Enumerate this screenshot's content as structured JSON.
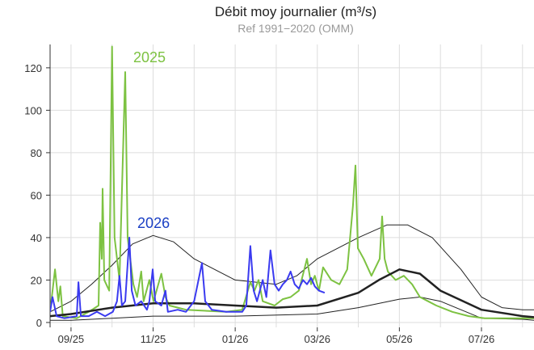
{
  "chart_data": {
    "type": "line",
    "title": "Débit moy journalier (m³/s)",
    "subtitle": "Ref 1991−2020 (OMM)",
    "xlim": [
      -0.51,
      11.28
    ],
    "xticks": [
      {
        "value": 0,
        "label": "09/25"
      },
      {
        "value": 2,
        "label": "11/25"
      },
      {
        "value": 4,
        "label": "01/26"
      },
      {
        "value": 6,
        "label": "03/26"
      },
      {
        "value": 8,
        "label": "05/26"
      },
      {
        "value": 10,
        "label": "07/26"
      }
    ],
    "xminor": [
      1,
      3,
      5,
      7,
      9,
      11
    ],
    "ylim": [
      -2.3,
      131
    ],
    "yticks": [
      0,
      20,
      40,
      60,
      80,
      100,
      120
    ],
    "grid": true,
    "series": [
      {
        "color": "#222222",
        "width": 1,
        "x": [
          -0.51,
          0,
          0.5,
          1,
          1.5,
          2,
          2.5,
          3,
          4,
          5,
          5.5,
          6,
          7,
          7.7,
          8.2,
          8.8,
          9.5,
          10,
          10.5,
          11,
          11.28
        ],
        "values": [
          5,
          10,
          18,
          27,
          37,
          41,
          38,
          30,
          20,
          18,
          22,
          30,
          40,
          46,
          46,
          40,
          25,
          12,
          7,
          6,
          6
        ]
      },
      {
        "color": "#222222",
        "width": 1,
        "x": [
          -0.51,
          0,
          1,
          2,
          4,
          6,
          7,
          8,
          8.5,
          9,
          9.5,
          10,
          11,
          11.28
        ],
        "values": [
          1,
          1,
          2,
          3,
          3,
          4,
          7,
          11,
          12,
          10,
          6,
          2,
          1.5,
          1
        ]
      },
      {
        "name": "2025",
        "color": "#7dc242",
        "width": 2,
        "x": [
          -0.51,
          -0.39,
          -0.31,
          -0.26,
          -0.2,
          0.14,
          0.33,
          0.43,
          0.67,
          0.71,
          0.75,
          0.77,
          0.81,
          0.93,
          1.0,
          1.06,
          1.18,
          1.32,
          1.38,
          1.52,
          1.61,
          1.71,
          1.77,
          1.91,
          2.01,
          2.2,
          2.3,
          2.4,
          2.8,
          3.78,
          4.17,
          4.37,
          4.47,
          4.57,
          4.67,
          4.96,
          5.16,
          5.35,
          5.55,
          5.75,
          5.85,
          5.94,
          6.04,
          6.14,
          6.34,
          6.54,
          6.73,
          6.87,
          6.93,
          6.99,
          7.13,
          7.32,
          7.52,
          7.58,
          7.64,
          7.72,
          7.91,
          8.11,
          8.31,
          8.5,
          8.7,
          8.9,
          9.29,
          9.69,
          10.08,
          10.67,
          11.28
        ],
        "values": [
          5,
          25,
          10,
          17,
          3,
          2,
          4,
          5,
          8,
          47,
          30,
          63,
          20,
          15,
          130,
          40,
          20,
          118,
          40,
          18,
          12,
          24,
          10,
          20,
          10,
          23,
          12,
          8,
          6,
          5,
          6,
          19,
          15,
          20,
          10,
          8,
          11,
          12,
          15,
          30,
          18,
          22,
          15,
          26,
          20,
          18,
          25,
          55,
          74,
          35,
          30,
          22,
          30,
          50,
          30,
          24,
          20,
          22,
          18,
          12,
          10,
          8,
          5,
          3,
          2,
          2,
          2
        ]
      },
      {
        "color": "#222222",
        "width": 2.5,
        "x": [
          -0.51,
          0,
          1,
          2,
          3,
          4,
          5,
          6,
          7,
          7.5,
          8,
          8.5,
          9,
          10,
          11,
          11.28
        ],
        "values": [
          3,
          4,
          7,
          9,
          9,
          8,
          7,
          8,
          14,
          20,
          25,
          23,
          15,
          6,
          3,
          2.5
        ]
      },
      {
        "name": "2026",
        "color": "#3a3af0",
        "label_color": "#1a3fc4",
        "width": 2,
        "x": [
          -0.51,
          -0.45,
          -0.35,
          -0.16,
          0.14,
          0.18,
          0.24,
          0.43,
          0.63,
          0.83,
          1.02,
          1.12,
          1.18,
          1.24,
          1.32,
          1.42,
          1.48,
          1.57,
          1.71,
          1.85,
          1.91,
          1.99,
          2.05,
          2.2,
          2.3,
          2.36,
          2.6,
          2.8,
          3.0,
          3.19,
          3.27,
          3.43,
          3.78,
          4.17,
          4.27,
          4.37,
          4.45,
          4.53,
          4.67,
          4.76,
          4.86,
          4.96,
          5.06,
          5.16,
          5.26,
          5.35,
          5.45,
          5.55,
          5.65,
          5.75,
          5.85,
          5.94,
          6.04,
          6.18
        ],
        "values": [
          5,
          12,
          3,
          2,
          3,
          19,
          3,
          3,
          5,
          3,
          5,
          10,
          22,
          8,
          10,
          40,
          15,
          8,
          10,
          6,
          10,
          25,
          10,
          8,
          15,
          5,
          6,
          5,
          10,
          28,
          10,
          6,
          5,
          5,
          8,
          36,
          15,
          10,
          20,
          12,
          34,
          18,
          15,
          18,
          20,
          24,
          18,
          16,
          20,
          18,
          21,
          17,
          15,
          14
        ]
      }
    ]
  }
}
